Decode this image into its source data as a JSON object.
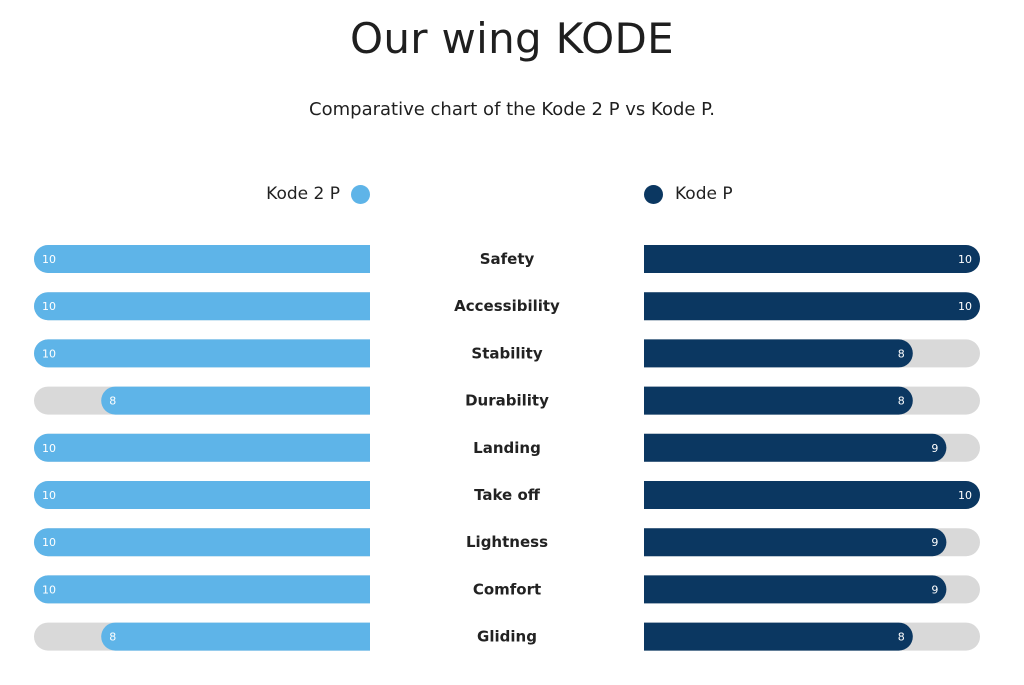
{
  "chart_data": {
    "type": "bar",
    "title": "Our wing KODE",
    "subtitle": "Comparative chart of the Kode 2 P vs Kode P.",
    "categories": [
      "Safety",
      "Accessibility",
      "Stability",
      "Durability",
      "Landing",
      "Take off",
      "Lightness",
      "Comfort",
      "Gliding"
    ],
    "series": [
      {
        "name": "Kode 2 P",
        "color": "#5eb4e8",
        "values": [
          10,
          10,
          10,
          8,
          10,
          10,
          10,
          10,
          8
        ]
      },
      {
        "name": "Kode P",
        "color": "#0b3761",
        "values": [
          10,
          10,
          8,
          8,
          9,
          10,
          9,
          9,
          8
        ]
      }
    ],
    "xlim": [
      0,
      10
    ],
    "track_color": "#d9d9d9",
    "legend": "top"
  }
}
